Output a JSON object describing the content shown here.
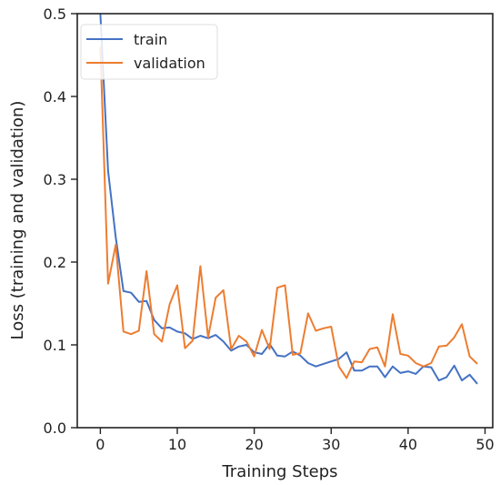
{
  "chart_data": {
    "type": "line",
    "xlabel": "Training Steps",
    "ylabel": "Loss (training and validation)",
    "xlim": [
      -3,
      51
    ],
    "ylim": [
      0,
      0.5
    ],
    "x_ticks": [
      0,
      10,
      20,
      30,
      40,
      50
    ],
    "y_ticks": [
      0.0,
      0.1,
      0.2,
      0.3,
      0.4,
      0.5
    ],
    "x_tick_labels": [
      "0",
      "10",
      "20",
      "30",
      "40",
      "50"
    ],
    "y_tick_labels": [
      "0.0",
      "0.1",
      "0.2",
      "0.3",
      "0.4",
      "0.5"
    ],
    "grid": false,
    "legend_position": "top-left",
    "x": [
      0,
      1,
      2,
      3,
      4,
      5,
      6,
      7,
      8,
      9,
      10,
      11,
      12,
      13,
      14,
      15,
      16,
      17,
      18,
      19,
      20,
      21,
      22,
      23,
      24,
      25,
      26,
      27,
      28,
      29,
      30,
      31,
      32,
      33,
      34,
      35,
      36,
      37,
      38,
      39,
      40,
      41,
      42,
      43,
      44,
      45,
      46,
      47,
      48,
      49
    ],
    "series": [
      {
        "name": "train",
        "color": "#4472c4",
        "values": [
          0.5,
          0.31,
          0.23,
          0.165,
          0.163,
          0.152,
          0.153,
          0.13,
          0.12,
          0.121,
          0.116,
          0.114,
          0.107,
          0.111,
          0.108,
          0.112,
          0.104,
          0.093,
          0.098,
          0.1,
          0.091,
          0.089,
          0.101,
          0.087,
          0.086,
          0.092,
          0.087,
          0.078,
          0.074,
          0.077,
          0.08,
          0.083,
          0.091,
          0.069,
          0.069,
          0.074,
          0.074,
          0.061,
          0.074,
          0.066,
          0.068,
          0.065,
          0.074,
          0.073,
          0.057,
          0.061,
          0.075,
          0.057,
          0.064,
          0.053
        ]
      },
      {
        "name": "validation",
        "color": "#ed7d31",
        "values": [
          0.46,
          0.174,
          0.221,
          0.116,
          0.113,
          0.117,
          0.189,
          0.113,
          0.104,
          0.149,
          0.172,
          0.096,
          0.105,
          0.195,
          0.109,
          0.157,
          0.166,
          0.095,
          0.111,
          0.104,
          0.086,
          0.118,
          0.095,
          0.169,
          0.172,
          0.088,
          0.09,
          0.138,
          0.117,
          0.12,
          0.122,
          0.074,
          0.06,
          0.08,
          0.079,
          0.095,
          0.097,
          0.074,
          0.137,
          0.089,
          0.087,
          0.078,
          0.074,
          0.078,
          0.098,
          0.099,
          0.109,
          0.125,
          0.086,
          0.077
        ]
      }
    ]
  }
}
